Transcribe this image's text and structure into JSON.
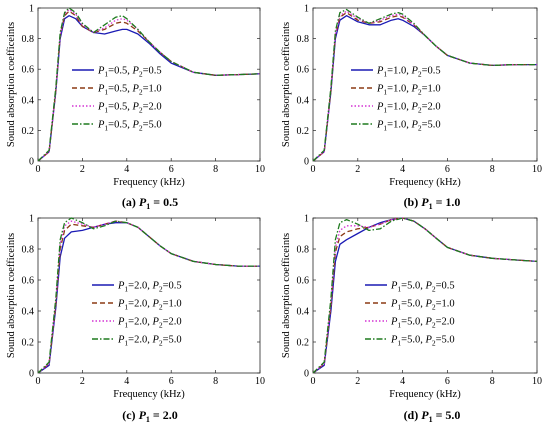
{
  "chart_data": [
    {
      "type": "line",
      "caption": {
        "letter": "(a)",
        "pvar": "P",
        "psub": "1",
        "pvalue": " = 0.5"
      },
      "xlabel": "Frequency (kHz)",
      "ylabel": "Sound absorption coefficeints",
      "xlim": [
        0,
        10
      ],
      "ylim": [
        0,
        1
      ],
      "xticks": [
        "0",
        "2",
        "4",
        "6",
        "8",
        "10"
      ],
      "yticks": [
        "0",
        "0.2",
        "0.4",
        "0.6",
        "0.8",
        "1"
      ],
      "legend_position": "center",
      "series": [
        {
          "p1": "0.5",
          "p2": "0.5",
          "color": "#1a1ab4",
          "dash": "",
          "x": [
            0,
            0.5,
            0.8,
            1.0,
            1.2,
            1.4,
            1.7,
            2.0,
            2.5,
            3.0,
            3.5,
            3.8,
            4.0,
            4.5,
            5.0,
            5.5,
            6.0,
            7.0,
            8.0,
            9.0,
            10.0
          ],
          "y": [
            0,
            0.06,
            0.45,
            0.8,
            0.93,
            0.95,
            0.93,
            0.88,
            0.84,
            0.83,
            0.85,
            0.86,
            0.86,
            0.83,
            0.77,
            0.7,
            0.64,
            0.58,
            0.56,
            0.565,
            0.57
          ]
        },
        {
          "p1": "0.5",
          "p2": "1.0",
          "color": "#8b3a14",
          "dash": "5,3",
          "x": [
            0,
            0.5,
            0.8,
            1.0,
            1.2,
            1.4,
            1.7,
            2.0,
            2.5,
            3.0,
            3.5,
            3.8,
            4.0,
            4.5,
            5.0,
            5.5,
            6.0,
            7.0,
            8.0,
            9.0,
            10.0
          ],
          "y": [
            0,
            0.06,
            0.46,
            0.82,
            0.95,
            0.98,
            0.95,
            0.88,
            0.84,
            0.86,
            0.9,
            0.91,
            0.9,
            0.85,
            0.78,
            0.71,
            0.65,
            0.58,
            0.56,
            0.565,
            0.57
          ]
        },
        {
          "p1": "0.5",
          "p2": "2.0",
          "color": "#d433d4",
          "dash": "1.5,2",
          "x": [
            0,
            0.5,
            0.8,
            1.0,
            1.2,
            1.4,
            1.7,
            2.0,
            2.5,
            3.0,
            3.5,
            3.8,
            4.0,
            4.5,
            5.0,
            5.5,
            6.0,
            7.0,
            8.0,
            9.0,
            10.0
          ],
          "y": [
            0,
            0.06,
            0.46,
            0.82,
            0.96,
            0.99,
            0.96,
            0.89,
            0.84,
            0.87,
            0.92,
            0.93,
            0.92,
            0.86,
            0.78,
            0.71,
            0.65,
            0.58,
            0.56,
            0.565,
            0.57
          ]
        },
        {
          "p1": "0.5",
          "p2": "5.0",
          "color": "#1e7a1e",
          "dash": "6,2,1.5,2",
          "x": [
            0,
            0.5,
            0.8,
            1.0,
            1.2,
            1.4,
            1.7,
            2.0,
            2.5,
            3.0,
            3.5,
            3.8,
            4.0,
            4.5,
            5.0,
            5.5,
            6.0,
            7.0,
            8.0,
            9.0,
            10.0
          ],
          "y": [
            0,
            0.07,
            0.48,
            0.84,
            0.97,
            1.0,
            0.97,
            0.9,
            0.84,
            0.89,
            0.94,
            0.95,
            0.93,
            0.86,
            0.78,
            0.71,
            0.65,
            0.58,
            0.56,
            0.565,
            0.57
          ]
        }
      ]
    },
    {
      "type": "line",
      "caption": {
        "letter": "(b)",
        "pvar": "P",
        "psub": "1",
        "pvalue": " = 1.0"
      },
      "xlabel": "Frequency (kHz)",
      "ylabel": "Sound absorption coefficeints",
      "xlim": [
        0,
        10
      ],
      "ylim": [
        0,
        1
      ],
      "xticks": [
        "0",
        "2",
        "4",
        "6",
        "8",
        "10"
      ],
      "yticks": [
        "0",
        "0.2",
        "0.4",
        "0.6",
        "0.8",
        "1"
      ],
      "legend_position": "center",
      "series": [
        {
          "p1": "1.0",
          "p2": "0.5",
          "color": "#1a1ab4",
          "dash": "",
          "x": [
            0,
            0.5,
            0.8,
            1.0,
            1.2,
            1.5,
            2.0,
            2.5,
            3.0,
            3.5,
            3.8,
            4.0,
            4.5,
            5.0,
            5.5,
            6.0,
            7.0,
            8.0,
            9.0,
            10.0
          ],
          "y": [
            0,
            0.06,
            0.45,
            0.8,
            0.92,
            0.95,
            0.91,
            0.89,
            0.89,
            0.92,
            0.93,
            0.92,
            0.88,
            0.82,
            0.75,
            0.69,
            0.64,
            0.625,
            0.63,
            0.63
          ]
        },
        {
          "p1": "1.0",
          "p2": "1.0",
          "color": "#8b3a14",
          "dash": "5,3",
          "x": [
            0,
            0.5,
            0.8,
            1.0,
            1.2,
            1.5,
            2.0,
            2.5,
            3.0,
            3.5,
            3.8,
            4.0,
            4.5,
            5.0,
            5.5,
            6.0,
            7.0,
            8.0,
            9.0,
            10.0
          ],
          "y": [
            0,
            0.06,
            0.46,
            0.82,
            0.94,
            0.97,
            0.92,
            0.9,
            0.91,
            0.94,
            0.95,
            0.94,
            0.89,
            0.82,
            0.75,
            0.69,
            0.64,
            0.625,
            0.63,
            0.63
          ]
        },
        {
          "p1": "1.0",
          "p2": "2.0",
          "color": "#d433d4",
          "dash": "1.5,2",
          "x": [
            0,
            0.5,
            0.8,
            1.0,
            1.2,
            1.5,
            2.0,
            2.5,
            3.0,
            3.5,
            3.8,
            4.0,
            4.5,
            5.0,
            5.5,
            6.0,
            7.0,
            8.0,
            9.0,
            10.0
          ],
          "y": [
            0,
            0.06,
            0.47,
            0.83,
            0.95,
            0.98,
            0.93,
            0.9,
            0.92,
            0.95,
            0.96,
            0.95,
            0.89,
            0.82,
            0.75,
            0.69,
            0.64,
            0.625,
            0.63,
            0.63
          ]
        },
        {
          "p1": "1.0",
          "p2": "5.0",
          "color": "#1e7a1e",
          "dash": "6,2,1.5,2",
          "x": [
            0,
            0.5,
            0.8,
            1.0,
            1.2,
            1.5,
            2.0,
            2.5,
            3.0,
            3.5,
            3.8,
            4.0,
            4.5,
            5.0,
            5.5,
            6.0,
            7.0,
            8.0,
            9.0,
            10.0
          ],
          "y": [
            0,
            0.07,
            0.48,
            0.85,
            0.97,
            0.99,
            0.94,
            0.9,
            0.93,
            0.96,
            0.97,
            0.96,
            0.9,
            0.82,
            0.75,
            0.69,
            0.64,
            0.625,
            0.63,
            0.63
          ]
        }
      ]
    },
    {
      "type": "line",
      "caption": {
        "letter": "(c)",
        "pvar": "P",
        "psub": "1",
        "pvalue": " = 2.0"
      },
      "xlabel": "Frequency (kHz)",
      "ylabel": "Sound absorption coefficeints",
      "xlim": [
        0,
        10
      ],
      "ylim": [
        0,
        1
      ],
      "xticks": [
        "0",
        "2",
        "4",
        "6",
        "8",
        "10"
      ],
      "yticks": [
        "0",
        "0.2",
        "0.4",
        "0.6",
        "0.8",
        "1"
      ],
      "legend_position": "bottom-center",
      "series": [
        {
          "p1": "2.0",
          "p2": "0.5",
          "color": "#1a1ab4",
          "dash": "",
          "x": [
            0,
            0.5,
            0.8,
            1.0,
            1.2,
            1.5,
            2.0,
            2.5,
            3.0,
            3.5,
            4.0,
            4.5,
            5.0,
            5.5,
            6.0,
            7.0,
            8.0,
            9.0,
            10.0
          ],
          "y": [
            0,
            0.05,
            0.42,
            0.75,
            0.87,
            0.91,
            0.92,
            0.94,
            0.96,
            0.97,
            0.97,
            0.94,
            0.88,
            0.82,
            0.77,
            0.72,
            0.7,
            0.69,
            0.69
          ]
        },
        {
          "p1": "2.0",
          "p2": "1.0",
          "color": "#8b3a14",
          "dash": "5,3",
          "x": [
            0,
            0.5,
            0.8,
            1.0,
            1.2,
            1.5,
            2.0,
            2.5,
            3.0,
            3.5,
            4.0,
            4.5,
            5.0,
            5.5,
            6.0,
            7.0,
            8.0,
            9.0,
            10.0
          ],
          "y": [
            0,
            0.06,
            0.44,
            0.8,
            0.92,
            0.96,
            0.95,
            0.94,
            0.96,
            0.98,
            0.97,
            0.94,
            0.88,
            0.82,
            0.77,
            0.72,
            0.7,
            0.69,
            0.69
          ]
        },
        {
          "p1": "2.0",
          "p2": "2.0",
          "color": "#d433d4",
          "dash": "1.5,2",
          "x": [
            0,
            0.5,
            0.8,
            1.0,
            1.2,
            1.5,
            2.0,
            2.5,
            3.0,
            3.5,
            4.0,
            4.5,
            5.0,
            5.5,
            6.0,
            7.0,
            8.0,
            9.0,
            10.0
          ],
          "y": [
            0,
            0.06,
            0.46,
            0.83,
            0.95,
            0.98,
            0.96,
            0.94,
            0.96,
            0.98,
            0.97,
            0.94,
            0.88,
            0.82,
            0.77,
            0.72,
            0.7,
            0.69,
            0.69
          ]
        },
        {
          "p1": "2.0",
          "p2": "5.0",
          "color": "#1e7a1e",
          "dash": "6,2,1.5,2",
          "x": [
            0,
            0.5,
            0.8,
            1.0,
            1.2,
            1.5,
            2.0,
            2.5,
            3.0,
            3.5,
            4.0,
            4.5,
            5.0,
            5.5,
            6.0,
            7.0,
            8.0,
            9.0,
            10.0
          ],
          "y": [
            0,
            0.07,
            0.48,
            0.86,
            0.97,
            1.0,
            0.97,
            0.93,
            0.95,
            0.98,
            0.97,
            0.94,
            0.88,
            0.82,
            0.77,
            0.72,
            0.7,
            0.69,
            0.69
          ]
        }
      ]
    },
    {
      "type": "line",
      "caption": {
        "letter": "(d)",
        "pvar": "P",
        "psub": "1",
        "pvalue": " = 5.0"
      },
      "xlabel": "Frequency (kHz)",
      "ylabel": "Sound absorption coefficeints",
      "xlim": [
        0,
        10
      ],
      "ylim": [
        0,
        1
      ],
      "xticks": [
        "0",
        "2",
        "4",
        "6",
        "8",
        "10"
      ],
      "yticks": [
        "0",
        "0.2",
        "0.4",
        "0.6",
        "0.8",
        "1"
      ],
      "legend_position": "bottom-center",
      "series": [
        {
          "p1": "5.0",
          "p2": "0.5",
          "color": "#1a1ab4",
          "dash": "",
          "x": [
            0,
            0.5,
            0.8,
            1.0,
            1.2,
            1.5,
            2.0,
            2.5,
            3.0,
            3.5,
            4.0,
            4.5,
            5.0,
            5.5,
            6.0,
            7.0,
            8.0,
            9.0,
            10.0
          ],
          "y": [
            0,
            0.05,
            0.4,
            0.72,
            0.83,
            0.86,
            0.9,
            0.94,
            0.97,
            0.99,
            1.0,
            0.98,
            0.93,
            0.87,
            0.81,
            0.76,
            0.74,
            0.73,
            0.72
          ]
        },
        {
          "p1": "5.0",
          "p2": "1.0",
          "color": "#8b3a14",
          "dash": "5,3",
          "x": [
            0,
            0.5,
            0.8,
            1.0,
            1.2,
            1.5,
            2.0,
            2.5,
            3.0,
            3.5,
            4.0,
            4.5,
            5.0,
            5.5,
            6.0,
            7.0,
            8.0,
            9.0,
            10.0
          ],
          "y": [
            0,
            0.06,
            0.43,
            0.78,
            0.88,
            0.91,
            0.93,
            0.94,
            0.96,
            0.99,
            1.0,
            0.98,
            0.93,
            0.87,
            0.81,
            0.76,
            0.74,
            0.73,
            0.72
          ]
        },
        {
          "p1": "5.0",
          "p2": "2.0",
          "color": "#d433d4",
          "dash": "1.5,2",
          "x": [
            0,
            0.5,
            0.8,
            1.0,
            1.2,
            1.5,
            2.0,
            2.5,
            3.0,
            3.5,
            4.0,
            4.5,
            5.0,
            5.5,
            6.0,
            7.0,
            8.0,
            9.0,
            10.0
          ],
          "y": [
            0,
            0.06,
            0.45,
            0.81,
            0.92,
            0.95,
            0.95,
            0.94,
            0.96,
            0.99,
            1.0,
            0.98,
            0.93,
            0.87,
            0.81,
            0.76,
            0.74,
            0.73,
            0.72
          ]
        },
        {
          "p1": "5.0",
          "p2": "5.0",
          "color": "#1e7a1e",
          "dash": "6,2,1.5,2",
          "x": [
            0,
            0.5,
            0.8,
            1.0,
            1.2,
            1.5,
            2.0,
            2.5,
            3.0,
            3.5,
            4.0,
            4.5,
            5.0,
            5.5,
            6.0,
            7.0,
            8.0,
            9.0,
            10.0
          ],
          "y": [
            0,
            0.07,
            0.48,
            0.86,
            0.97,
            0.99,
            0.96,
            0.92,
            0.93,
            0.98,
            1.0,
            0.98,
            0.93,
            0.87,
            0.81,
            0.76,
            0.74,
            0.73,
            0.72
          ]
        }
      ]
    }
  ]
}
